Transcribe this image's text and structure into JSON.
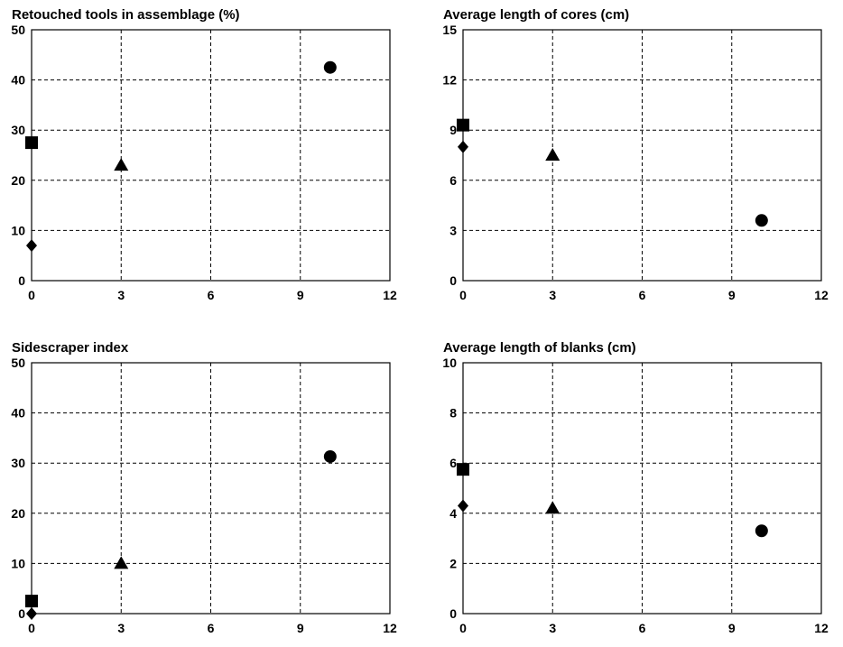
{
  "chart_data": [
    {
      "type": "scatter",
      "title": "Retouched tools in assemblage (%)",
      "xlim": [
        0,
        12
      ],
      "ylim": [
        0,
        50
      ],
      "xticks": [
        "0",
        "3",
        "6",
        "9",
        "12"
      ],
      "yticks": [
        "0",
        "10",
        "20",
        "30",
        "40",
        "50"
      ],
      "grid": true,
      "points": [
        {
          "marker": "square",
          "x": 0,
          "y": 27.5
        },
        {
          "marker": "diamond",
          "x": 0,
          "y": 7
        },
        {
          "marker": "triangle",
          "x": 3,
          "y": 23
        },
        {
          "marker": "circle",
          "x": 10,
          "y": 42.5
        }
      ]
    },
    {
      "type": "scatter",
      "title": "Average length of cores (cm)",
      "xlim": [
        0,
        12
      ],
      "ylim": [
        0,
        15
      ],
      "xticks": [
        "0",
        "3",
        "6",
        "9",
        "12"
      ],
      "yticks": [
        "0",
        "3",
        "6",
        "9",
        "12",
        "15"
      ],
      "grid": true,
      "points": [
        {
          "marker": "square",
          "x": 0,
          "y": 9.3
        },
        {
          "marker": "diamond",
          "x": 0,
          "y": 8
        },
        {
          "marker": "triangle",
          "x": 3,
          "y": 7.5
        },
        {
          "marker": "circle",
          "x": 10,
          "y": 3.6
        }
      ]
    },
    {
      "type": "scatter",
      "title": "Sidescraper index",
      "xlim": [
        0,
        12
      ],
      "ylim": [
        0,
        50
      ],
      "xticks": [
        "0",
        "3",
        "6",
        "9",
        "12"
      ],
      "yticks": [
        "0",
        "10",
        "20",
        "30",
        "40",
        "50"
      ],
      "grid": true,
      "points": [
        {
          "marker": "square",
          "x": 0,
          "y": 2.5
        },
        {
          "marker": "diamond",
          "x": 0,
          "y": 0
        },
        {
          "marker": "triangle",
          "x": 3,
          "y": 10
        },
        {
          "marker": "circle",
          "x": 10,
          "y": 31.3
        }
      ]
    },
    {
      "type": "scatter",
      "title": "Average length of blanks (cm)",
      "xlim": [
        0,
        12
      ],
      "ylim": [
        0,
        10
      ],
      "xticks": [
        "0",
        "3",
        "6",
        "9",
        "12"
      ],
      "yticks": [
        "0",
        "2",
        "4",
        "6",
        "8",
        "10"
      ],
      "grid": true,
      "points": [
        {
          "marker": "square",
          "x": 0,
          "y": 5.75
        },
        {
          "marker": "diamond",
          "x": 0,
          "y": 4.3
        },
        {
          "marker": "triangle",
          "x": 3,
          "y": 4.2
        },
        {
          "marker": "circle",
          "x": 10,
          "y": 3.3
        }
      ]
    }
  ]
}
